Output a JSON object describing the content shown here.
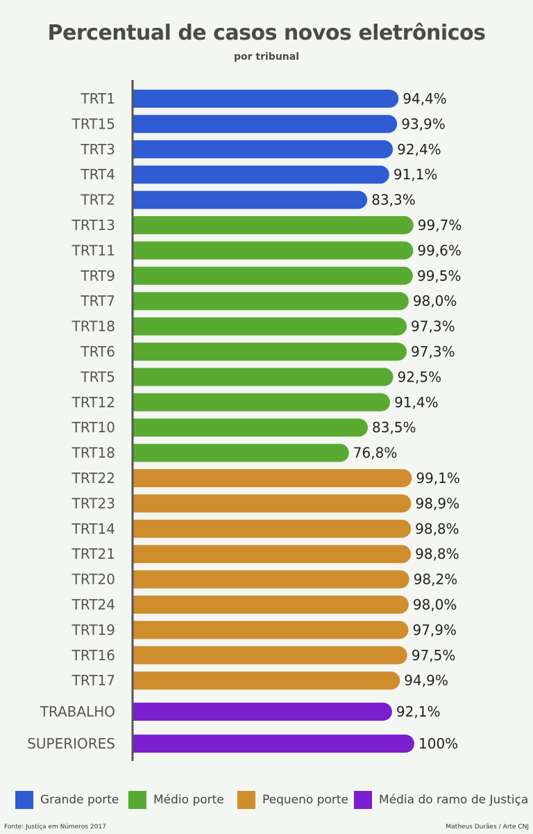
{
  "chart_data": {
    "type": "bar",
    "orientation": "horizontal",
    "title": "Percentual de casos novos eletrônicos",
    "subtitle": "por tribunal",
    "bars": [
      {
        "category": "TRT1",
        "value": 94.4,
        "label": "94,4%",
        "group": "grande"
      },
      {
        "category": "TRT15",
        "value": 93.9,
        "label": "93,9%",
        "group": "grande"
      },
      {
        "category": "TRT3",
        "value": 92.4,
        "label": "92,4%",
        "group": "grande"
      },
      {
        "category": "TRT4",
        "value": 91.1,
        "label": "91,1%",
        "group": "grande"
      },
      {
        "category": "TRT2",
        "value": 83.3,
        "label": "83,3%",
        "group": "grande"
      },
      {
        "category": "TRT13",
        "value": 99.7,
        "label": "99,7%",
        "group": "medio"
      },
      {
        "category": "TRT11",
        "value": 99.6,
        "label": "99,6%",
        "group": "medio"
      },
      {
        "category": "TRT9",
        "value": 99.5,
        "label": "99,5%",
        "group": "medio"
      },
      {
        "category": "TRT7",
        "value": 98.0,
        "label": "98,0%",
        "group": "medio"
      },
      {
        "category": "TRT18",
        "value": 97.3,
        "label": "97,3%",
        "group": "medio"
      },
      {
        "category": "TRT6",
        "value": 97.3,
        "label": "97,3%",
        "group": "medio"
      },
      {
        "category": "TRT5",
        "value": 92.5,
        "label": "92,5%",
        "group": "medio"
      },
      {
        "category": "TRT12",
        "value": 91.4,
        "label": "91,4%",
        "group": "medio"
      },
      {
        "category": "TRT10",
        "value": 83.5,
        "label": "83,5%",
        "group": "medio"
      },
      {
        "category": "TRT18",
        "value": 76.8,
        "label": "76,8%",
        "group": "medio"
      },
      {
        "category": "TRT22",
        "value": 99.1,
        "label": "99,1%",
        "group": "pequeno"
      },
      {
        "category": "TRT23",
        "value": 98.9,
        "label": "98,9%",
        "group": "pequeno"
      },
      {
        "category": "TRT14",
        "value": 98.8,
        "label": "98,8%",
        "group": "pequeno"
      },
      {
        "category": "TRT21",
        "value": 98.8,
        "label": "98,8%",
        "group": "pequeno"
      },
      {
        "category": "TRT20",
        "value": 98.2,
        "label": "98,2%",
        "group": "pequeno"
      },
      {
        "category": "TRT24",
        "value": 98.0,
        "label": "98,0%",
        "group": "pequeno"
      },
      {
        "category": "TRT19",
        "value": 97.9,
        "label": "97,9%",
        "group": "pequeno"
      },
      {
        "category": "TRT16",
        "value": 97.5,
        "label": "97,5%",
        "group": "pequeno"
      },
      {
        "category": "TRT17",
        "value": 94.9,
        "label": "94,9%",
        "group": "pequeno"
      },
      {
        "category": "TRABALHO",
        "value": 92.1,
        "label": "92,1%",
        "group": "media"
      },
      {
        "category": "SUPERIORES",
        "value": 100,
        "label": "100%",
        "group": "media"
      }
    ],
    "xlim": [
      0,
      100
    ],
    "grid": false,
    "legend_position": "bottom",
    "legend": [
      {
        "key": "grande",
        "label": "Grande porte",
        "color": "#2f5bd3"
      },
      {
        "key": "medio",
        "label": "Médio porte",
        "color": "#5aaa32"
      },
      {
        "key": "pequeno",
        "label": "Pequeno porte",
        "color": "#cf8d2e"
      },
      {
        "key": "media",
        "label": "Média do ramo de Justiça",
        "color": "#7a1fce"
      }
    ]
  },
  "footer": {
    "source": "Fonte: Justiça em Números 2017",
    "credit": "Matheus Durães / Arte CNJ"
  }
}
